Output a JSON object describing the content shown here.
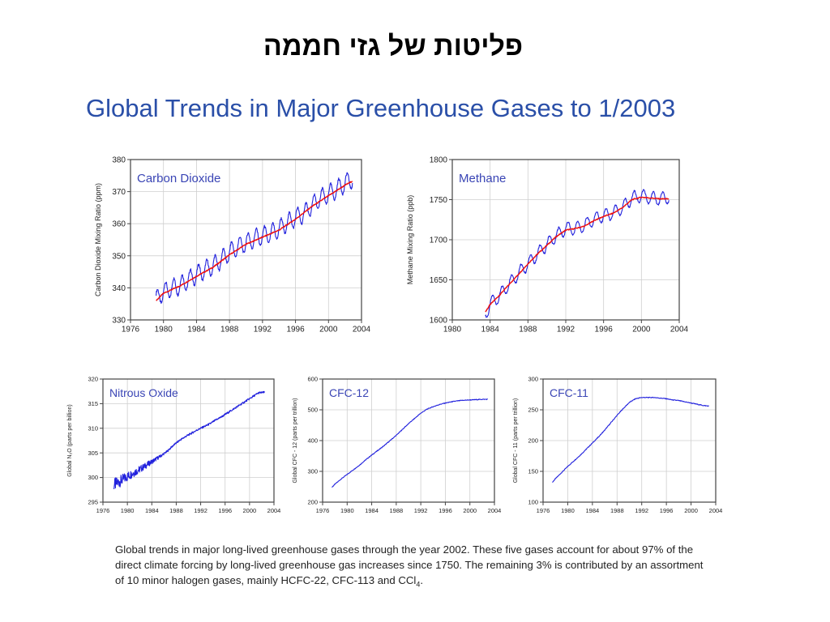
{
  "slide": {
    "hebrew_title": "פליטות של גזי חממה",
    "title": "Global Trends in Major Greenhouse Gases to 1/2003",
    "caption_main": "Global trends in major long-lived greenhouse gases through the year 2002.  These five gases account for about 97% of the direct climate forcing by long-lived greenhouse gas increases since 1750.  The remaining 3% is contributed by an assortment of 10 minor halogen gases, mainly HCFC-22, CFC-113 and CCl",
    "caption_sub": "4",
    "caption_end": "."
  },
  "colors": {
    "measured": "#2222dd",
    "trend": "#ee1111",
    "frame": "#444444",
    "grid": "#cfcfcf",
    "title_blue": "#2a4fa8"
  },
  "chart_data": [
    {
      "id": "co2",
      "type": "line",
      "label": "Carbon Dioxide",
      "ylabel": "Carbon Dioxide Mixing Ratio (ppm)",
      "xlim": [
        1976,
        2004
      ],
      "ylim": [
        330,
        380
      ],
      "xticks": [
        "1976",
        "1980",
        "1984",
        "1988",
        "1992",
        "1996",
        "2000",
        "2004"
      ],
      "yticks": [
        "330",
        "340",
        "350",
        "360",
        "370",
        "380"
      ],
      "grid": true,
      "series": [
        {
          "role": "measured",
          "x": [
            1979.1,
            1980,
            1981,
            1982,
            1983,
            1984,
            1985,
            1986,
            1987,
            1988,
            1989,
            1990,
            1991,
            1992,
            1993,
            1994,
            1995,
            1996,
            1997,
            1998,
            1999,
            2000,
            2001,
            2002,
            2002.9
          ],
          "y": [
            336.3,
            338.7,
            339.9,
            340.8,
            342.5,
            344.1,
            345.6,
            346.8,
            348.8,
            351.1,
            352.8,
            354.0,
            355.4,
            356.2,
            356.9,
            358.4,
            360.2,
            361.9,
            363.1,
            365.7,
            367.9,
            369.2,
            370.7,
            372.6,
            374.0
          ],
          "seasonal_amplitude": 2.8
        },
        {
          "role": "trend",
          "x": [
            1979.1,
            1980,
            1982,
            1984,
            1986,
            1988,
            1990,
            1992,
            1994,
            1996,
            1998,
            2000,
            2002,
            2002.9
          ],
          "y": [
            336,
            338.3,
            340.6,
            343.6,
            346.4,
            350.3,
            353.6,
            355.8,
            358.0,
            361.4,
            365.4,
            368.7,
            372.0,
            373.3
          ]
        }
      ]
    },
    {
      "id": "ch4",
      "type": "line",
      "label": "Methane",
      "ylabel": "Methane Mixing Ratio (ppb)",
      "xlim": [
        1980,
        2004
      ],
      "ylim": [
        1600,
        1800
      ],
      "xticks": [
        "1980",
        "1984",
        "1988",
        "1992",
        "1996",
        "2000",
        "2004"
      ],
      "yticks": [
        "1600",
        "1650",
        "1700",
        "1750",
        "1800"
      ],
      "grid": true,
      "series": [
        {
          "role": "measured",
          "x": [
            1983.5,
            1984,
            1985,
            1986,
            1987,
            1988,
            1989,
            1990,
            1991,
            1992,
            1993,
            1994,
            1995,
            1996,
            1997,
            1998,
            1999,
            2000,
            2001,
            2002,
            2002.9
          ],
          "y": [
            1606,
            1620,
            1630,
            1645,
            1658,
            1670,
            1682,
            1694,
            1705,
            1714,
            1714,
            1718,
            1726,
            1730,
            1733,
            1740,
            1752,
            1755,
            1752,
            1751,
            1753
          ],
          "seasonal_amplitude": 8
        },
        {
          "role": "trend",
          "x": [
            1983.5,
            1984,
            1985,
            1986,
            1987,
            1988,
            1989,
            1990,
            1991,
            1992,
            1993,
            1994,
            1995,
            1996,
            1997,
            1998,
            1999,
            2000,
            2001,
            2002,
            2002.9
          ],
          "y": [
            1610,
            1619,
            1631,
            1644,
            1657,
            1670,
            1682,
            1693,
            1704,
            1712,
            1714,
            1717,
            1724,
            1729,
            1733,
            1740,
            1750,
            1753,
            1752,
            1751,
            1751
          ]
        }
      ]
    },
    {
      "id": "n2o",
      "type": "line",
      "label": "Nitrous Oxide",
      "ylabel": "Global N₂O (parts per billion)",
      "xlim": [
        1976,
        2004
      ],
      "ylim": [
        295,
        320
      ],
      "xticks": [
        "1976",
        "1980",
        "1984",
        "1988",
        "1992",
        "1996",
        "2000",
        "2004"
      ],
      "yticks": [
        "295",
        "300",
        "305",
        "310",
        "315",
        "320"
      ],
      "grid": true,
      "series": [
        {
          "role": "measured",
          "x": [
            1977.8,
            1978.5,
            1979.5,
            1980.5,
            1981.5,
            1982.5,
            1983.5,
            1984.5,
            1985.5,
            1986.5,
            1987.5,
            1988.5,
            1989.5,
            1990.5,
            1991.5,
            1992.5,
            1993.5,
            1994.5,
            1995.5,
            1996.5,
            1997.5,
            1998.5,
            1999.5,
            2000.5,
            2001.5,
            2002.5
          ],
          "y": [
            298.5,
            299.0,
            299.8,
            300.6,
            301.3,
            302.0,
            302.8,
            303.6,
            304.4,
            305.3,
            306.5,
            307.5,
            308.3,
            309.0,
            309.7,
            310.3,
            310.9,
            311.7,
            312.4,
            313.2,
            314.0,
            314.8,
            315.6,
            316.4,
            317.2,
            317.3
          ],
          "noise_amplitude": 1.3
        }
      ]
    },
    {
      "id": "cfc12",
      "type": "line",
      "label": "CFC-12",
      "ylabel": "Global CFC - 12 (parts per trillion)",
      "xlim": [
        1976,
        2004
      ],
      "ylim": [
        200,
        600
      ],
      "xticks": [
        "1976",
        "1980",
        "1984",
        "1988",
        "1992",
        "1996",
        "2000",
        "2004"
      ],
      "yticks": [
        "200",
        "300",
        "400",
        "500",
        "600"
      ],
      "grid": true,
      "series": [
        {
          "role": "measured",
          "x": [
            1977.5,
            1978,
            1979,
            1980,
            1981,
            1982,
            1983,
            1984,
            1985,
            1986,
            1987,
            1988,
            1989,
            1990,
            1991,
            1992,
            1993,
            1994,
            1995,
            1996,
            1997,
            1998,
            1999,
            2000,
            2001,
            2002,
            2002.9
          ],
          "y": [
            248,
            258,
            275,
            290,
            305,
            320,
            337,
            353,
            368,
            383,
            400,
            417,
            436,
            455,
            472,
            489,
            502,
            510,
            517,
            522,
            526,
            529,
            531,
            532,
            533,
            534,
            534
          ]
        }
      ]
    },
    {
      "id": "cfc11",
      "type": "line",
      "label": "CFC-11",
      "ylabel": "Global CFC - 11 (parts per trillion)",
      "xlim": [
        1976,
        2004
      ],
      "ylim": [
        100,
        300
      ],
      "xticks": [
        "1976",
        "1980",
        "1984",
        "1988",
        "1992",
        "1996",
        "2000",
        "2004"
      ],
      "yticks": [
        "100",
        "150",
        "200",
        "250",
        "300"
      ],
      "grid": true,
      "series": [
        {
          "role": "measured",
          "x": [
            1977.5,
            1978,
            1979,
            1980,
            1981,
            1982,
            1983,
            1984,
            1985,
            1986,
            1987,
            1988,
            1989,
            1990,
            1991,
            1992,
            1993,
            1994,
            1995,
            1996,
            1997,
            1998,
            1999,
            2000,
            2001,
            2002,
            2002.9
          ],
          "y": [
            132,
            138,
            148,
            158,
            167,
            176,
            186,
            196,
            206,
            217,
            229,
            241,
            252,
            262,
            268,
            270,
            270,
            270,
            269,
            268,
            266,
            265,
            263,
            261,
            259,
            257,
            256
          ]
        }
      ]
    }
  ]
}
